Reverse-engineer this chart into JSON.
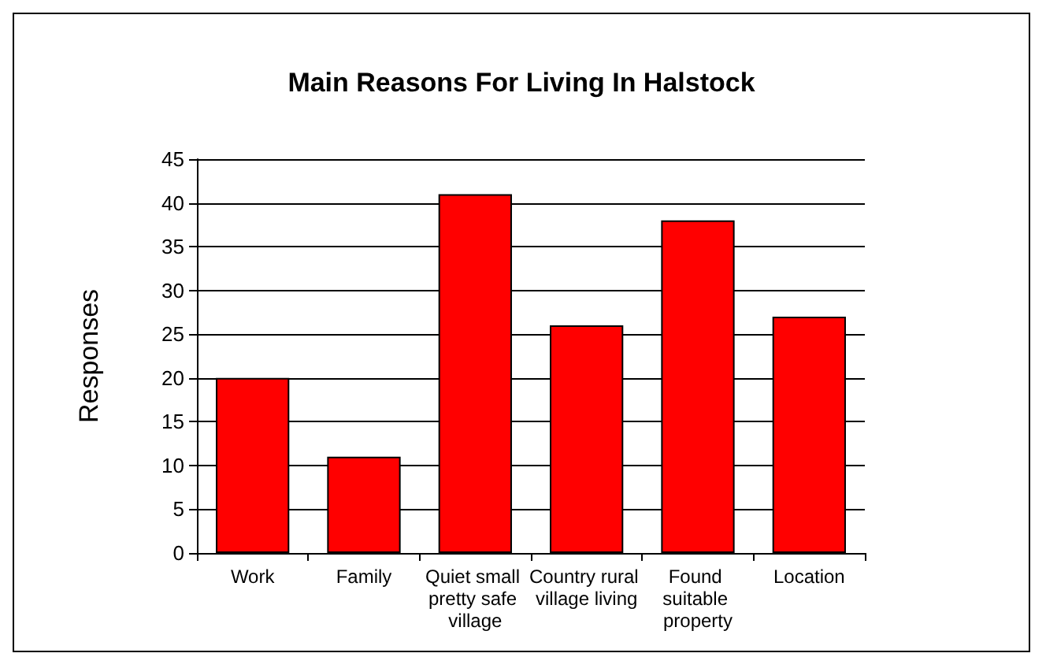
{
  "chart_data": {
    "type": "bar",
    "title": "Main Reasons For Living In Halstock",
    "ylabel": "Responses",
    "categories": [
      "Work",
      "Family",
      "Quiet small pretty safe village",
      "Country rural village living",
      "Found suitable property",
      "Location"
    ],
    "values": [
      20,
      11,
      41,
      26,
      38,
      27
    ],
    "color": "#ff0000",
    "ylim": [
      0,
      45
    ],
    "yticks": [
      0,
      5,
      10,
      15,
      20,
      25,
      30,
      35,
      40,
      45
    ],
    "grid": "y"
  }
}
